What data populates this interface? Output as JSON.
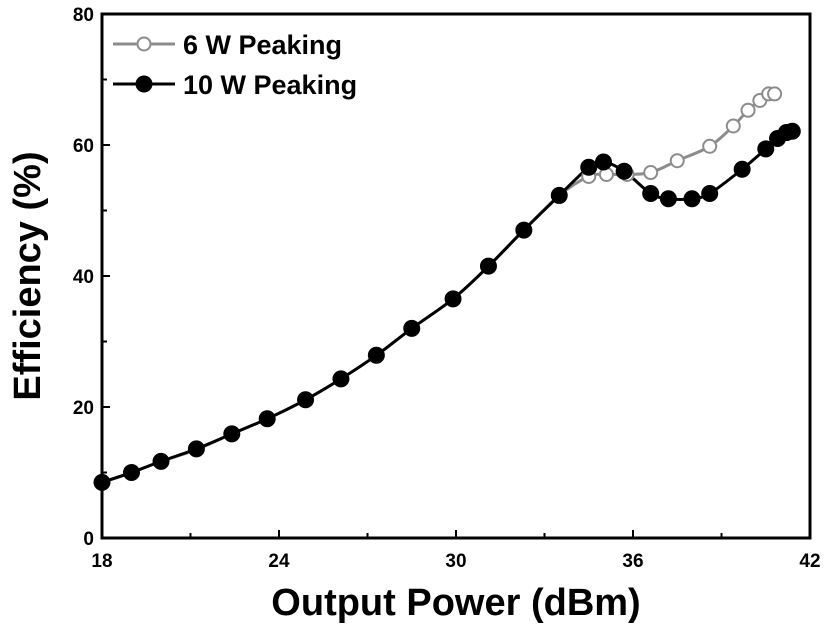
{
  "chart_data": {
    "type": "line",
    "title": "",
    "xlabel": "Output Power (dBm)",
    "ylabel": "Efficiency (%)",
    "xlim": [
      18,
      42
    ],
    "ylim": [
      0,
      80
    ],
    "xticks": [
      18,
      24,
      30,
      36,
      42
    ],
    "yticks": [
      0,
      20,
      40,
      60,
      80
    ],
    "grid": false,
    "legend_position": "top-left",
    "series": [
      {
        "name": "6 W Peaking",
        "color": "#8c8c8c",
        "marker": "open-circle",
        "x": [
          18.0,
          19.0,
          20.0,
          21.2,
          22.4,
          23.6,
          24.9,
          26.1,
          27.3,
          28.5,
          29.9,
          31.1,
          32.3,
          33.5,
          34.5,
          35.1,
          35.8,
          36.6,
          37.5,
          38.6,
          39.4,
          39.9,
          40.3,
          40.6,
          40.8
        ],
        "y": [
          8.5,
          10.0,
          11.7,
          13.5,
          15.9,
          18.2,
          21.1,
          24.3,
          27.9,
          32.0,
          36.5,
          41.5,
          47.0,
          52.3,
          55.2,
          55.5,
          55.5,
          55.8,
          57.6,
          59.8,
          62.9,
          65.3,
          66.8,
          67.8,
          67.8
        ]
      },
      {
        "name": "10 W Peaking",
        "color": "#000000",
        "marker": "filled-circle",
        "x": [
          18.0,
          19.0,
          20.0,
          21.2,
          22.4,
          23.6,
          24.9,
          26.1,
          27.3,
          28.5,
          29.9,
          31.1,
          32.3,
          33.5,
          34.5,
          35.0,
          35.7,
          36.6,
          37.2,
          38.0,
          38.6,
          39.7,
          40.5,
          40.9,
          41.2,
          41.4
        ],
        "y": [
          8.5,
          10.0,
          11.7,
          13.6,
          15.9,
          18.2,
          21.1,
          24.3,
          27.9,
          32.0,
          36.5,
          41.5,
          47.0,
          52.3,
          56.6,
          57.4,
          56.0,
          52.6,
          51.8,
          51.8,
          52.6,
          56.3,
          59.4,
          61.0,
          61.9,
          62.1
        ]
      }
    ]
  }
}
